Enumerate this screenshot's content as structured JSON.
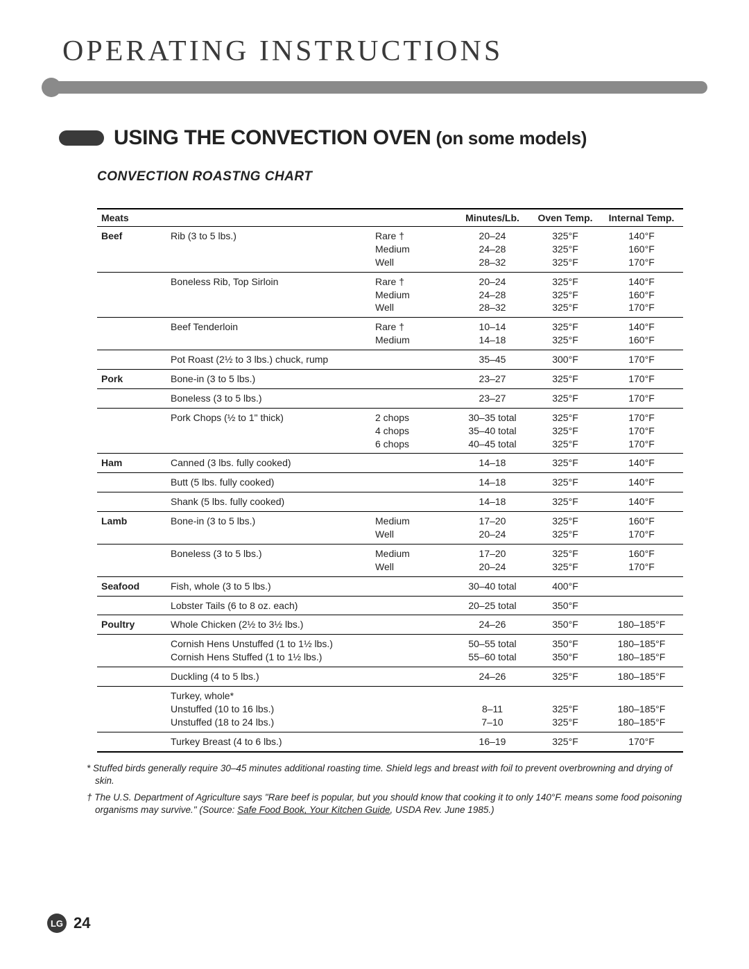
{
  "header": {
    "title": "OPERATING INSTRUCTIONS"
  },
  "section": {
    "title_main": "USING THE CONVECTION OVEN",
    "title_sub": " (on some models)"
  },
  "chart": {
    "title": "CONVECTION ROASTNG CHART",
    "columns": {
      "meats": "Meats",
      "minutes": "Minutes/Lb.",
      "oven": "Oven Temp.",
      "internal": "Internal Temp."
    },
    "rows": [
      {
        "cat": "Beef",
        "desc": "Rib (3 to 5 lbs.)",
        "done": [
          "Rare †",
          "Medium",
          "Well"
        ],
        "min": [
          "20–24",
          "24–28",
          "28–32"
        ],
        "oven": [
          "325°F",
          "325°F",
          "325°F"
        ],
        "int": [
          "140°F",
          "160°F",
          "170°F"
        ]
      },
      {
        "cat": "",
        "desc": "Boneless Rib, Top Sirloin",
        "done": [
          "Rare †",
          "Medium",
          "Well"
        ],
        "min": [
          "20–24",
          "24–28",
          "28–32"
        ],
        "oven": [
          "325°F",
          "325°F",
          "325°F"
        ],
        "int": [
          "140°F",
          "160°F",
          "170°F"
        ]
      },
      {
        "cat": "",
        "desc": "Beef Tenderloin",
        "done": [
          "Rare †",
          "Medium"
        ],
        "min": [
          "10–14",
          "14–18"
        ],
        "oven": [
          "325°F",
          "325°F"
        ],
        "int": [
          "140°F",
          "160°F"
        ]
      },
      {
        "cat": "",
        "desc": "Pot Roast (2½ to 3 lbs.) chuck, rump",
        "done": [
          ""
        ],
        "min": [
          "35–45"
        ],
        "oven": [
          "300°F"
        ],
        "int": [
          "170°F"
        ]
      },
      {
        "cat": "Pork",
        "desc": "Bone-in (3 to 5 lbs.)",
        "done": [
          ""
        ],
        "min": [
          "23–27"
        ],
        "oven": [
          "325°F"
        ],
        "int": [
          "170°F"
        ]
      },
      {
        "cat": "",
        "desc": "Boneless (3 to 5 lbs.)",
        "done": [
          ""
        ],
        "min": [
          "23–27"
        ],
        "oven": [
          "325°F"
        ],
        "int": [
          "170°F"
        ]
      },
      {
        "cat": "",
        "desc": "Pork Chops (½ to 1\" thick)",
        "done": [
          "2 chops",
          "4 chops",
          "6 chops"
        ],
        "min": [
          "30–35 total",
          "35–40 total",
          "40–45 total"
        ],
        "oven": [
          "325°F",
          "325°F",
          "325°F"
        ],
        "int": [
          "170°F",
          "170°F",
          "170°F"
        ]
      },
      {
        "cat": "Ham",
        "desc": "Canned (3 lbs. fully cooked)",
        "done": [
          ""
        ],
        "min": [
          "14–18"
        ],
        "oven": [
          "325°F"
        ],
        "int": [
          "140°F"
        ]
      },
      {
        "cat": "",
        "desc": "Butt (5 lbs. fully cooked)",
        "done": [
          ""
        ],
        "min": [
          "14–18"
        ],
        "oven": [
          "325°F"
        ],
        "int": [
          "140°F"
        ]
      },
      {
        "cat": "",
        "desc": "Shank (5 lbs. fully cooked)",
        "done": [
          ""
        ],
        "min": [
          "14–18"
        ],
        "oven": [
          "325°F"
        ],
        "int": [
          "140°F"
        ]
      },
      {
        "cat": "Lamb",
        "desc": "Bone-in (3 to 5 lbs.)",
        "done": [
          "Medium",
          "Well"
        ],
        "min": [
          "17–20",
          "20–24"
        ],
        "oven": [
          "325°F",
          "325°F"
        ],
        "int": [
          "160°F",
          "170°F"
        ]
      },
      {
        "cat": "",
        "desc": "Boneless (3 to 5 lbs.)",
        "done": [
          "Medium",
          "Well"
        ],
        "min": [
          "17–20",
          "20–24"
        ],
        "oven": [
          "325°F",
          "325°F"
        ],
        "int": [
          "160°F",
          "170°F"
        ]
      },
      {
        "cat": "Seafood",
        "desc": "Fish, whole (3 to 5 lbs.)",
        "done": [
          ""
        ],
        "min": [
          "30–40 total"
        ],
        "oven": [
          "400°F"
        ],
        "int": [
          ""
        ]
      },
      {
        "cat": "",
        "desc": "Lobster Tails (6 to 8 oz. each)",
        "done": [
          ""
        ],
        "min": [
          "20–25 total"
        ],
        "oven": [
          "350°F"
        ],
        "int": [
          ""
        ]
      },
      {
        "cat": "Poultry",
        "desc": "Whole Chicken (2½ to 3½ lbs.)",
        "done": [
          ""
        ],
        "min": [
          "24–26"
        ],
        "oven": [
          "350°F"
        ],
        "int": [
          "180–185°F"
        ]
      },
      {
        "cat": "",
        "desc": "Cornish Hens Unstuffed (1 to 1½ lbs.)\nCornish Hens Stuffed (1 to 1½ lbs.)",
        "done": [
          "",
          ""
        ],
        "min": [
          "50–55 total",
          "55–60 total"
        ],
        "oven": [
          "350°F",
          "350°F"
        ],
        "int": [
          "180–185°F",
          "180–185°F"
        ]
      },
      {
        "cat": "",
        "desc": "Duckling (4 to 5 lbs.)",
        "done": [
          ""
        ],
        "min": [
          "24–26"
        ],
        "oven": [
          "325°F"
        ],
        "int": [
          "180–185°F"
        ]
      },
      {
        "cat": "",
        "desc": "Turkey, whole*\nUnstuffed (10 to 16 lbs.)\nUnstuffed (18 to 24 lbs.)",
        "done": [
          "",
          "",
          ""
        ],
        "min": [
          "",
          "8–11",
          "7–10"
        ],
        "oven": [
          "",
          "325°F",
          "325°F"
        ],
        "int": [
          "",
          "180–185°F",
          "180–185°F"
        ]
      },
      {
        "cat": "",
        "desc": "Turkey Breast (4 to 6 lbs.)",
        "done": [
          ""
        ],
        "min": [
          "16–19"
        ],
        "oven": [
          "325°F"
        ],
        "int": [
          "170°F"
        ],
        "last": true
      }
    ]
  },
  "footnotes": {
    "n1": "* Stuffed birds generally require 30–45 minutes additional roasting time. Shield legs and breast with foil to prevent overbrowning and drying of skin.",
    "n2a": "† The U.S. Department of Agriculture says \"Rare beef is popular, but you should know that cooking it to only 140°F. means some food poisoning organisms may survive.\" (Source: ",
    "n2src": "Safe Food Book, Your Kitchen Guide",
    "n2b": ", USDA Rev. June 1985.)"
  },
  "footer": {
    "logo": "LG",
    "page": "24"
  },
  "style": {
    "header_color": "#3a3a3a",
    "rule_color": "#8a8a8a",
    "text_color": "#222222",
    "border_color": "#000000",
    "header_fontsize": 42,
    "section_fontsize": 30,
    "chart_title_fontsize": 19,
    "table_fontsize": 14,
    "footnote_fontsize": 13.5
  }
}
